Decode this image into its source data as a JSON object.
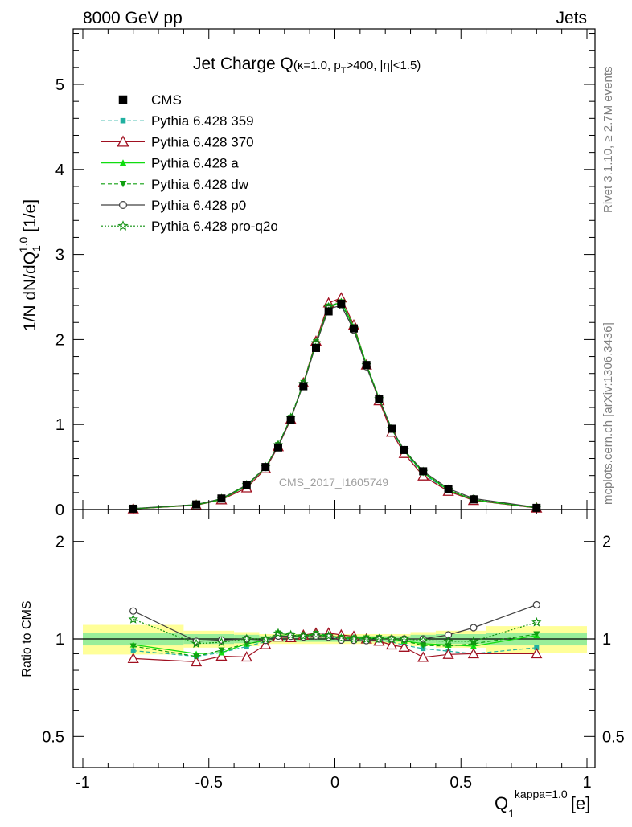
{
  "header": {
    "left": "8000 GeV pp",
    "right": "Jets"
  },
  "side_labels": {
    "rivet": "Rivet 3.1.10, ≥ 2.7M events",
    "mcplots": "mcplots.cern.ch [arXiv:1306.3436]"
  },
  "chart_data": {
    "type": "line",
    "title": "Jet Charge Q",
    "title_sub": "(κ=1.0, p",
    "title_sub_T": "T",
    "title_sub_rest": ">400, |η|<1.5)",
    "watermark": "CMS_2017_I1605749",
    "ylabel_main": "1/N dN/dQ",
    "ylabel_main_sub": "1",
    "ylabel_main_sup": "1.0",
    "ylabel_main_unit": "[1/e]",
    "ylabel_ratio": "Ratio to CMS",
    "xlabel": "Q",
    "xlabel_sub": "1",
    "xlabel_sup": "kappa=1.0",
    "xlabel_unit": "[e]",
    "xlim": [
      -1,
      1
    ],
    "ylim_main": [
      0,
      5.6
    ],
    "ylim_ratio": [
      0.4,
      2.3
    ],
    "ratio_scale": "log",
    "x_ticks": [
      "-1",
      "-0.5",
      "0",
      "0.5",
      "1"
    ],
    "y_ticks_main": [
      "0",
      "1",
      "2",
      "3",
      "4",
      "5"
    ],
    "y_ticks_ratio": [
      "0.5",
      "1",
      "2"
    ],
    "legend_position": "top-left",
    "x": [
      -0.8,
      -0.55,
      -0.45,
      -0.35,
      -0.275,
      -0.225,
      -0.175,
      -0.125,
      -0.075,
      -0.025,
      0.025,
      0.075,
      0.125,
      0.175,
      0.225,
      0.275,
      0.35,
      0.45,
      0.55,
      0.8
    ],
    "bands": [
      {
        "x0": -1.0,
        "x1": -0.6,
        "inner": 0.045,
        "outer": 0.105
      },
      {
        "x0": -0.6,
        "x1": -0.4,
        "inner": 0.035,
        "outer": 0.06
      },
      {
        "x0": -0.4,
        "x1": -0.3,
        "inner": 0.03,
        "outer": 0.05
      },
      {
        "x0": -0.3,
        "x1": 0.3,
        "inner": 0.02,
        "outer": 0.035
      },
      {
        "x0": 0.3,
        "x1": 0.4,
        "inner": 0.03,
        "outer": 0.05
      },
      {
        "x0": 0.4,
        "x1": 0.6,
        "inner": 0.035,
        "outer": 0.06
      },
      {
        "x0": 0.6,
        "x1": 1.0,
        "inner": 0.045,
        "outer": 0.095
      }
    ],
    "series": [
      {
        "name": "CMS",
        "color": "#000000",
        "marker": "square",
        "dash": "none",
        "values": [
          0.01,
          0.06,
          0.13,
          0.29,
          0.5,
          0.73,
          1.05,
          1.45,
          1.9,
          2.33,
          2.42,
          2.13,
          1.7,
          1.3,
          0.95,
          0.7,
          0.45,
          0.24,
          0.12,
          0.02
        ]
      },
      {
        "name": "Pythia 6.428 359",
        "color": "#20b0a0",
        "marker": "square-small",
        "dash": "5,3",
        "values": [
          0.0092,
          0.053,
          0.118,
          0.275,
          0.49,
          0.75,
          1.07,
          1.48,
          1.97,
          2.4,
          2.41,
          2.14,
          1.7,
          1.29,
          0.93,
          0.67,
          0.42,
          0.22,
          0.108,
          0.0188
        ]
      },
      {
        "name": "Pythia 6.428 370",
        "color": "#a01020",
        "marker": "triangle-open",
        "dash": "none",
        "values": [
          0.0087,
          0.051,
          0.115,
          0.255,
          0.48,
          0.74,
          1.06,
          1.49,
          1.98,
          2.43,
          2.49,
          2.17,
          1.7,
          1.28,
          0.91,
          0.66,
          0.395,
          0.215,
          0.108,
          0.018
        ]
      },
      {
        "name": "Pythia 6.428 a",
        "color": "#10dd10",
        "marker": "triangle",
        "dash": "none",
        "values": [
          0.0096,
          0.054,
          0.118,
          0.28,
          0.495,
          0.75,
          1.07,
          1.48,
          1.96,
          2.37,
          2.45,
          2.15,
          1.71,
          1.31,
          0.95,
          0.69,
          0.435,
          0.23,
          0.114,
          0.0205
        ]
      },
      {
        "name": "Pythia 6.428 dw",
        "color": "#10a010",
        "marker": "triangle-down",
        "dash": "5,3",
        "values": [
          0.0095,
          0.053,
          0.12,
          0.28,
          0.495,
          0.76,
          1.08,
          1.49,
          1.97,
          2.39,
          2.44,
          2.14,
          1.71,
          1.31,
          0.95,
          0.69,
          0.43,
          0.228,
          0.116,
          0.0207
        ]
      },
      {
        "name": "Pythia 6.428 p0",
        "color": "#404040",
        "marker": "circle-open",
        "dash": "none",
        "values": [
          0.0122,
          0.059,
          0.129,
          0.29,
          0.495,
          0.745,
          1.07,
          1.47,
          1.94,
          2.36,
          2.4,
          2.11,
          1.68,
          1.3,
          0.95,
          0.7,
          0.45,
          0.247,
          0.13,
          0.0255
        ]
      },
      {
        "name": "Pythia 6.428 pro-q2o",
        "color": "#109010",
        "marker": "star-open",
        "dash": "2,2",
        "values": [
          0.0115,
          0.058,
          0.127,
          0.29,
          0.5,
          0.76,
          1.08,
          1.48,
          1.96,
          2.38,
          2.43,
          2.13,
          1.7,
          1.3,
          0.95,
          0.7,
          0.445,
          0.236,
          0.118,
          0.0225
        ]
      }
    ]
  }
}
